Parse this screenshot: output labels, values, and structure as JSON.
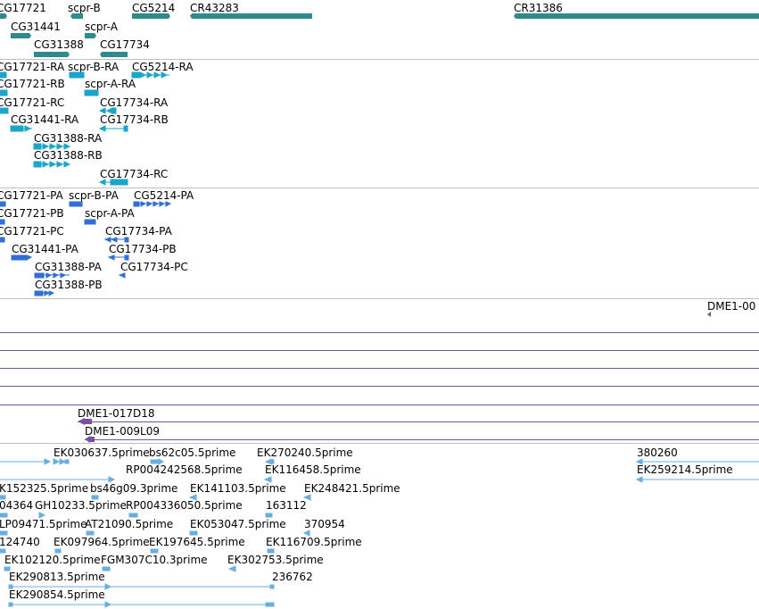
{
  "tracks": {
    "gene_models": {
      "color": "#2e8b8b",
      "labels": [
        "CG17721",
        "scpr-B",
        "CG5214",
        "CR43283",
        "CR31386",
        "CG31441",
        "scpr-A",
        "CG31388",
        "CG17734"
      ]
    },
    "transcripts": {
      "color": "#1aa6c8",
      "labels": [
        "CG17721-RA",
        "scpr-B-RA",
        "CG5214-RA",
        "CG17721-RB",
        "scpr-A-RA",
        "CG17721-RC",
        "CG17734-RA",
        "CG31441-RA",
        "CG17734-RB",
        "CG31388-RA",
        "CG31388-RB",
        "CG17734-RC"
      ]
    },
    "proteins": {
      "color": "#2f6fd6",
      "labels": [
        "CG17721-PA",
        "scpr-B-PA",
        "CG5214-PA",
        "CG17721-PB",
        "scpr-A-PA",
        "CG17721-PC",
        "CG17734-PA",
        "CG31441-PA",
        "CG17734-PB",
        "CG31388-PA",
        "CG17734-PC",
        "CG31388-PB"
      ]
    },
    "clones": {
      "color": "#7a4fa0",
      "labels": [
        "DME1-00",
        "DME1-017D18",
        "DME1-009L09"
      ]
    },
    "ests": {
      "color": "#6aaee0",
      "labels": [
        "EK030637.5prime",
        "bs62c05.5prime",
        "EK270240.5prime",
        "380260",
        "RP004242568.5prime",
        "EK116458.5prime",
        "EK259214.5prime",
        "K152325.5prime",
        "bs46g09.3prime",
        "EK141103.5prime",
        "EK248421.5prime",
        "04364",
        "GH10233.5prime",
        "RP004336050.5prime",
        "163112",
        "LP09471.5prime",
        "AT21090.5prime",
        "EK053047.5prime",
        "370954",
        "124740",
        "EK097964.5prime",
        "EK197645.5prime",
        "EK116709.5prime",
        "EK102120.5prime",
        "FGM307C10.3prime",
        "EK302753.5prime",
        "EK290813.5prime",
        "236762",
        "EK290854.5prime"
      ]
    }
  }
}
